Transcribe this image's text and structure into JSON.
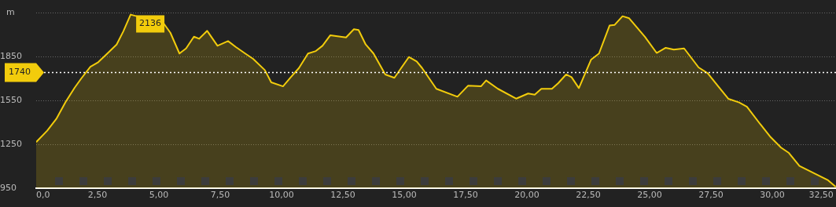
{
  "chart_data": {
    "type": "area",
    "ylabel": "m",
    "legend": false,
    "grid": "y",
    "marker": "none",
    "xlim": [
      0,
      32.6
    ],
    "xticks": [
      {
        "value": 0,
        "label": "0,0"
      },
      {
        "value": 2.5,
        "label": "2,50"
      },
      {
        "value": 5,
        "label": "5,00"
      },
      {
        "value": 7.5,
        "label": "7,50"
      },
      {
        "value": 10,
        "label": "10,00"
      },
      {
        "value": 12.5,
        "label": "12,50"
      },
      {
        "value": 15,
        "label": "15,00"
      },
      {
        "value": 17.5,
        "label": "17,50"
      },
      {
        "value": 20,
        "label": "20,00"
      },
      {
        "value": 22.5,
        "label": "22,50"
      },
      {
        "value": 25,
        "label": "25,00"
      },
      {
        "value": 27.5,
        "label": "27,50"
      },
      {
        "value": 30,
        "label": "30,00"
      },
      {
        "value": 32.5,
        "label": "32,50"
      }
    ],
    "ylim": [
      950,
      2150
    ],
    "yticks": [
      950,
      1250,
      1550,
      1850,
      {
        "value": 2150,
        "label": null
      }
    ],
    "ref_lines": [
      {
        "axis": "y",
        "value": 1740,
        "label": "1740",
        "color": "#ffffff",
        "line_style": "dotted"
      }
    ],
    "annotations": [
      {
        "text": "2136",
        "x": 3.85,
        "y": 2136
      }
    ],
    "series": [
      {
        "color": "#f2cc0c",
        "x": [
          0,
          0.45,
          0.82,
          1.2,
          1.57,
          1.84,
          2.21,
          2.53,
          2.9,
          3.28,
          3.55,
          3.85,
          5.2,
          5.47,
          5.84,
          6.11,
          6.43,
          6.64,
          6.97,
          7.39,
          7.82,
          8.14,
          8.52,
          8.84,
          9.32,
          9.58,
          10.06,
          10.38,
          10.71,
          11.08,
          11.4,
          11.67,
          11.99,
          12.63,
          12.95,
          13.14,
          13.43,
          13.75,
          14.23,
          14.6,
          15.19,
          15.51,
          15.73,
          16.31,
          17.17,
          17.6,
          18.13,
          18.34,
          18.82,
          19.57,
          20.05,
          20.32,
          20.59,
          21.02,
          21.28,
          21.6,
          21.82,
          22.12,
          22.62,
          22.94,
          23.37,
          23.58,
          23.9,
          24.17,
          24.81,
          25.29,
          25.66,
          25.99,
          26.41,
          27.0,
          27.37,
          27.8,
          28.21,
          28.65,
          28.97,
          29.51,
          29.94,
          30.36,
          30.68,
          31.11,
          31.75,
          32.28,
          32.59
        ],
        "values": [
          1265,
          1343,
          1423,
          1539,
          1637,
          1700,
          1780,
          1811,
          1870,
          1932,
          2021,
          2136,
          2075,
          2012,
          1870,
          1905,
          1985,
          1971,
          2025,
          1923,
          1955,
          1914,
          1870,
          1834,
          1757,
          1673,
          1646,
          1709,
          1771,
          1870,
          1887,
          1923,
          1995,
          1980,
          2036,
          2031,
          1932,
          1870,
          1727,
          1704,
          1846,
          1816,
          1771,
          1629,
          1575,
          1650,
          1646,
          1686,
          1629,
          1562,
          1597,
          1589,
          1629,
          1629,
          1668,
          1727,
          1709,
          1634,
          1829,
          1870,
          2061,
          2066,
          2125,
          2111,
          1985,
          1874,
          1909,
          1897,
          1905,
          1775,
          1736,
          1646,
          1561,
          1536,
          1507,
          1388,
          1298,
          1227,
          1191,
          1102,
          1048,
          1004,
          959
        ]
      }
    ]
  }
}
